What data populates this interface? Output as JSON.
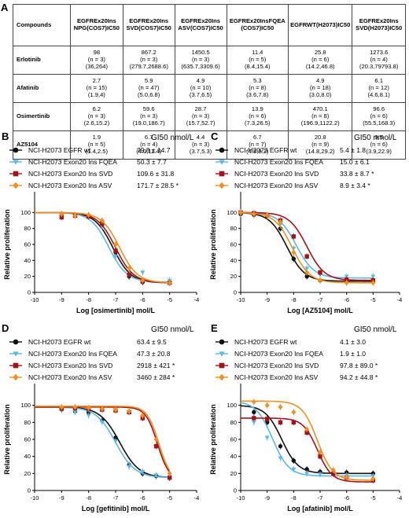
{
  "panel_letters": {
    "a": "A",
    "b": "B",
    "c": "C",
    "d": "D",
    "e": "E"
  },
  "table": {
    "headers": [
      [
        "Compounds"
      ],
      [
        "EGFR",
        "Ex20Ins NPG",
        "(COS7)",
        "IC50"
      ],
      [
        "EGFR",
        "Ex20Ins SVD",
        "(COS7)",
        "IC50"
      ],
      [
        "EGFR",
        "Ex20Ins ASV",
        "(COS7)",
        "IC50"
      ],
      [
        "EGFR",
        "Ex20Ins",
        "FQEA (COS7)",
        "IC50"
      ],
      [
        "EGFR",
        "WT",
        "(H2073)",
        "IC50"
      ],
      [
        "EGFR",
        "Ex20Ins SVD",
        "(H2073)",
        "IC50"
      ]
    ],
    "rows": [
      {
        "name": "Erlotinib",
        "cells": [
          [
            "98",
            "(n = 3)",
            "(36,264)"
          ],
          [
            "867.2",
            "(n = 3)",
            "(279.7,2688.6)"
          ],
          [
            "1450.5",
            "(n = 3)",
            "(635.7,3309.6)"
          ],
          [
            "11.4",
            "(n = 5)",
            "(8.4,15.4)"
          ],
          [
            "25.8",
            "(n = 6)",
            "(14.2,46.8)"
          ],
          [
            "1273.6",
            "(n = 4)",
            "(20.3,79793.8)"
          ]
        ]
      },
      {
        "name": "Afatinib",
        "cells": [
          [
            "2.7",
            "(n = 15)",
            "(1.9,4)"
          ],
          [
            "5.9",
            "(n = 47)",
            "(5.0,6.8)"
          ],
          [
            "4.9",
            "(n = 10)",
            "(3.7,6.5)"
          ],
          [
            "5.3",
            "(n = 8)",
            "(3.6,7.8)"
          ],
          [
            "4.9",
            "(n = 18)",
            "(3.0,8.0)"
          ],
          [
            "6.1",
            "(n = 12)",
            "(4.6,8.1)"
          ]
        ]
      },
      {
        "name": "Osimertinib",
        "cells": [
          [
            "6.2",
            "(n = 3)",
            "(2.6,15.2)"
          ],
          [
            "59.6",
            "(n = 3)",
            "(19.0,186.7)"
          ],
          [
            "28.7",
            "(n = 3)",
            "(15.7,52.7)"
          ],
          [
            "13.9",
            "(n = 6)",
            "(7.3,26.5)"
          ],
          [
            "470.1",
            "(n = 8)",
            "(196.9,1122.2)"
          ],
          [
            "96.6",
            "(n = 6)",
            "(55.5,168.3)"
          ]
        ]
      },
      {
        "name": "AZ5104",
        "cells": [
          [
            "1.9",
            "(n = 5)",
            "(1.4,2.5)"
          ],
          [
            "6.7",
            "(n = 4)",
            "(4.0,11.4)"
          ],
          [
            "4.4",
            "(n = 3)",
            "(3.7,5.3)"
          ],
          [
            "6.7",
            "(n = 7)",
            "(4.8,9.2)"
          ],
          [
            "20.8",
            "(n = 9)",
            "(14.8,29.2)"
          ],
          [
            "9.5",
            "(n = 6)",
            "(3.9,22.9)"
          ]
        ]
      }
    ]
  },
  "series_colors": {
    "wt": "#111111",
    "fqea": "#5bb8e8",
    "svd": "#a3131c",
    "asv": "#f0901e"
  },
  "chart_data": [
    {
      "id": "B",
      "type": "line",
      "gi_title": "GI50 nmol/L",
      "xlabel": "Log [osimertinib] mol/L",
      "ylabel": "Relative proliferation",
      "xlim": [
        -10,
        -4
      ],
      "ylim": [
        0,
        120
      ],
      "xticks": [
        "-10",
        "-9",
        "-8",
        "-7",
        "-6",
        "-5",
        "-4"
      ],
      "yticks": [
        "0",
        "20",
        "40",
        "60",
        "80",
        "100"
      ],
      "series": [
        {
          "name": "NCI-H2073 EGFR wt",
          "gi": "79.8 ± 14.7",
          "star": "",
          "key": "wt",
          "shape": "circle",
          "top": 100,
          "bottom": 12,
          "logec": -7.1,
          "hill": 1.3,
          "points": [
            [
              -9,
              98
            ],
            [
              -8.5,
              96
            ],
            [
              -8,
              96
            ],
            [
              -7.5,
              88
            ],
            [
              -7,
              50
            ],
            [
              -6.5,
              20
            ],
            [
              -6,
              13
            ],
            [
              -5,
              12
            ]
          ]
        },
        {
          "name": "NCI-H2073 Exon20 Ins FQEA",
          "gi": "50.3 ± 7.7",
          "star": "",
          "key": "fqea",
          "shape": "triangle",
          "top": 100,
          "bottom": 13,
          "logec": -7.25,
          "hill": 1.3,
          "points": [
            [
              -9,
              97
            ],
            [
              -8.5,
              97
            ],
            [
              -8,
              95
            ],
            [
              -7.5,
              82
            ],
            [
              -7,
              45
            ],
            [
              -6.5,
              22
            ],
            [
              -6,
              25
            ],
            [
              -5,
              15
            ]
          ]
        },
        {
          "name": "NCI-H2073 Exon20 Ins SVD",
          "gi": "109.6 ± 31.8",
          "star": "",
          "key": "svd",
          "shape": "square",
          "top": 100,
          "bottom": 12,
          "logec": -7.0,
          "hill": 1.3,
          "points": [
            [
              -9,
              94
            ],
            [
              -8.5,
              96
            ],
            [
              -8,
              95
            ],
            [
              -7.5,
              86
            ],
            [
              -7,
              52
            ],
            [
              -6.5,
              22
            ],
            [
              -6,
              14
            ],
            [
              -5,
              12
            ]
          ]
        },
        {
          "name": "NCI-H2073 Exon20 Ins ASV",
          "gi": "171.7 ± 28.5",
          "star": "*",
          "key": "asv",
          "shape": "diamond",
          "top": 100,
          "bottom": 12,
          "logec": -6.85,
          "hill": 1.3,
          "points": [
            [
              -9,
              98
            ],
            [
              -8.5,
              96
            ],
            [
              -8,
              97
            ],
            [
              -7.5,
              90
            ],
            [
              -7,
              60
            ],
            [
              -6.5,
              30
            ],
            [
              -6,
              15
            ],
            [
              -5,
              12
            ]
          ]
        }
      ]
    },
    {
      "id": "C",
      "type": "line",
      "gi_title": "GI50 nmol/L",
      "xlabel": "Log [AZ5104] mol/L",
      "ylabel": "Relative proliferation",
      "xlim": [
        -10,
        -4
      ],
      "ylim": [
        0,
        120
      ],
      "xticks": [
        "-10",
        "-9",
        "-8",
        "-7",
        "-6",
        "-5",
        "-4"
      ],
      "yticks": [
        "0",
        "20",
        "40",
        "60",
        "80",
        "100"
      ],
      "series": [
        {
          "name": "NCI-H2073 EGFR wt",
          "gi": "5.4 ± 1.8",
          "star": "",
          "key": "wt",
          "shape": "circle",
          "top": 100,
          "bottom": 14,
          "logec": -8.25,
          "hill": 1.3,
          "points": [
            [
              -10,
              98
            ],
            [
              -9.5,
              97
            ],
            [
              -9,
              96
            ],
            [
              -8.5,
              80
            ],
            [
              -8,
              42
            ],
            [
              -7.5,
              20
            ],
            [
              -7,
              15
            ],
            [
              -6,
              14
            ],
            [
              -5,
              14
            ]
          ]
        },
        {
          "name": "NCI-H2073 Exon20 Ins FQEA",
          "gi": "15.0 ± 6.1",
          "star": "",
          "key": "fqea",
          "shape": "triangle",
          "top": 100,
          "bottom": 18,
          "logec": -7.9,
          "hill": 1.3,
          "points": [
            [
              -10,
              98
            ],
            [
              -9.5,
              97
            ],
            [
              -9,
              95
            ],
            [
              -8.5,
              85
            ],
            [
              -8,
              55
            ],
            [
              -7.5,
              30
            ],
            [
              -7,
              22
            ],
            [
              -6,
              20
            ],
            [
              -5,
              20
            ]
          ]
        },
        {
          "name": "NCI-H2073 Exon20 Ins SVD",
          "gi": "33.8 ± 8.7",
          "star": "*",
          "key": "svd",
          "shape": "square",
          "top": 100,
          "bottom": 15,
          "logec": -7.5,
          "hill": 1.3,
          "points": [
            [
              -10,
              100
            ],
            [
              -9.5,
              99
            ],
            [
              -9,
              96
            ],
            [
              -8.5,
              90
            ],
            [
              -8,
              70
            ],
            [
              -7.5,
              45
            ],
            [
              -7,
              25
            ],
            [
              -6,
              16
            ],
            [
              -5,
              15
            ]
          ]
        },
        {
          "name": "NCI-H2073 Exon20 Ins ASV",
          "gi": "8.9 ± 3.4",
          "star": "*",
          "key": "asv",
          "shape": "diamond",
          "top": 100,
          "bottom": 12,
          "logec": -8.05,
          "hill": 1.3,
          "points": [
            [
              -10,
              100
            ],
            [
              -9.5,
              98
            ],
            [
              -9,
              97
            ],
            [
              -8.5,
              88
            ],
            [
              -8,
              50
            ],
            [
              -7.5,
              25
            ],
            [
              -7,
              15
            ],
            [
              -6,
              12
            ],
            [
              -5,
              12
            ]
          ]
        }
      ]
    },
    {
      "id": "D",
      "type": "line",
      "gi_title": "GI50 nmol/L",
      "xlabel": "Log [gefitinib] mol/L",
      "ylabel": "Relative proliferation",
      "xlim": [
        -10,
        -4
      ],
      "ylim": [
        0,
        120
      ],
      "xticks": [
        "-10",
        "-9",
        "-8",
        "-7",
        "-6",
        "-5",
        "-4"
      ],
      "yticks": [
        "0",
        "20",
        "40",
        "60",
        "80",
        "100"
      ],
      "series": [
        {
          "name": "NCI-H2073 EGFR wt",
          "gi": "63.4 ± 9.5",
          "star": "",
          "key": "wt",
          "shape": "circle",
          "top": 98,
          "bottom": 15,
          "logec": -6.85,
          "hill": 1.2,
          "points": [
            [
              -9,
              96
            ],
            [
              -8.5,
              93
            ],
            [
              -8,
              92
            ],
            [
              -7.5,
              82
            ],
            [
              -7,
              62
            ],
            [
              -6.5,
              30
            ],
            [
              -6,
              20
            ],
            [
              -5.5,
              17
            ],
            [
              -5,
              15
            ]
          ]
        },
        {
          "name": "NCI-H2073 Exon20 Ins FQEA",
          "gi": "47.3 ± 20.8",
          "star": "",
          "key": "fqea",
          "shape": "triangle",
          "top": 98,
          "bottom": 15,
          "logec": -7.0,
          "hill": 1.2,
          "points": [
            [
              -9,
              94
            ],
            [
              -8.5,
              92
            ],
            [
              -8,
              88
            ],
            [
              -7.5,
              80
            ],
            [
              -7,
              58
            ],
            [
              -6.5,
              28
            ],
            [
              -6,
              22
            ],
            [
              -5.5,
              18
            ],
            [
              -5,
              16
            ]
          ]
        },
        {
          "name": "NCI-H2073 Exon20 Ins SVD",
          "gi": "2918 ± 421",
          "star": "*",
          "key": "svd",
          "shape": "square",
          "top": 98,
          "bottom": 12,
          "logec": -5.45,
          "hill": 2.0,
          "points": [
            [
              -9,
              96
            ],
            [
              -8.5,
              97
            ],
            [
              -8,
              96
            ],
            [
              -7.5,
              95
            ],
            [
              -7,
              94
            ],
            [
              -6.5,
              92
            ],
            [
              -6,
              85
            ],
            [
              -5.5,
              52
            ],
            [
              -5,
              15
            ]
          ]
        },
        {
          "name": "NCI-H2073 Exon20 Ins ASV",
          "gi": "3460 ± 284",
          "star": "*",
          "key": "asv",
          "shape": "diamond",
          "top": 99,
          "bottom": 12,
          "logec": -5.4,
          "hill": 2.0,
          "points": [
            [
              -9,
              98
            ],
            [
              -8.5,
              98
            ],
            [
              -8,
              97
            ],
            [
              -7.5,
              96
            ],
            [
              -7,
              95
            ],
            [
              -6.5,
              93
            ],
            [
              -6,
              88
            ],
            [
              -5.5,
              60
            ],
            [
              -5,
              20
            ]
          ]
        }
      ]
    },
    {
      "id": "E",
      "type": "line",
      "gi_title": "GI50 nmol/L",
      "xlabel": "Log [afatinib] mol/L",
      "ylabel": "Relative proliferation",
      "xlim": [
        -10,
        -4
      ],
      "ylim": [
        0,
        120
      ],
      "xticks": [
        "-10",
        "-9",
        "-8",
        "-7",
        "-6",
        "-5",
        "-4"
      ],
      "yticks": [
        "0",
        "20",
        "40",
        "60",
        "80",
        "100"
      ],
      "series": [
        {
          "name": "NCI-H2073 EGFR wt",
          "gi": "4.1 ± 3.0",
          "star": "",
          "key": "wt",
          "shape": "circle",
          "top": 100,
          "bottom": 20,
          "logec": -8.45,
          "hill": 1.4,
          "points": [
            [
              -9.5,
              92
            ],
            [
              -9,
              80
            ],
            [
              -8.5,
              52
            ],
            [
              -8,
              35
            ],
            [
              -7.5,
              25
            ],
            [
              -7,
              22
            ],
            [
              -6,
              21
            ],
            [
              -5,
              20
            ]
          ]
        },
        {
          "name": "NCI-H2073 Exon20 Ins FQEA",
          "gi": "1.9 ± 1.0",
          "star": "",
          "key": "fqea",
          "shape": "triangle",
          "top": 105,
          "bottom": 17,
          "logec": -8.8,
          "hill": 1.4,
          "points": [
            [
              -9.5,
              80
            ],
            [
              -9,
              62
            ],
            [
              -8.5,
              38
            ],
            [
              -8,
              25
            ],
            [
              -7.5,
              20
            ],
            [
              -7,
              19
            ],
            [
              -6,
              18
            ],
            [
              -5,
              17
            ]
          ]
        },
        {
          "name": "NCI-H2073 Exon20 Ins SVD",
          "gi": "97.8 ± 89.0",
          "star": "*",
          "key": "svd",
          "shape": "square",
          "top": 85,
          "bottom": 10,
          "logec": -7.1,
          "hill": 1.6,
          "points": [
            [
              -9.5,
              85
            ],
            [
              -9,
              84
            ],
            [
              -8.5,
              80
            ],
            [
              -8,
              80
            ],
            [
              -7.5,
              68
            ],
            [
              -7,
              40
            ],
            [
              -6.5,
              20
            ],
            [
              -6,
              15
            ],
            [
              -5,
              12
            ]
          ]
        },
        {
          "name": "NCI-H2073 Exon20 Ins ASV",
          "gi": "94.2 ± 44.8",
          "star": "*",
          "key": "asv",
          "shape": "diamond",
          "top": 105,
          "bottom": 12,
          "logec": -7.1,
          "hill": 1.5,
          "points": [
            [
              -9.5,
              104
            ],
            [
              -9,
              100
            ],
            [
              -8.5,
              98
            ],
            [
              -8,
              92
            ],
            [
              -7.5,
              72
            ],
            [
              -7,
              45
            ],
            [
              -6.5,
              24
            ],
            [
              -6,
              16
            ],
            [
              -5,
              14
            ]
          ]
        }
      ]
    }
  ]
}
